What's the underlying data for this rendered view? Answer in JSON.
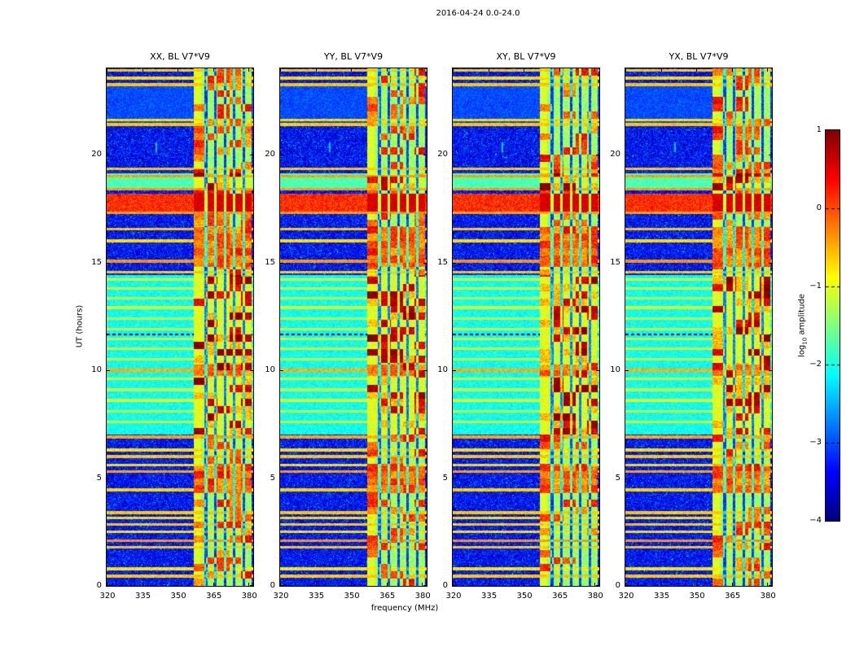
{
  "chart_data": {
    "type": "heatmap",
    "title": "2016-04-24 0.0-24.0",
    "xlabel": "frequency (MHz)",
    "ylabel": "UT (hours)",
    "zlabel": "log10 amplitude",
    "colormap": "jet",
    "panels": [
      "XX, BL V7*V9",
      "YY, BL V7*V9",
      "XY, BL V7*V9",
      "YX, BL V7*V9"
    ],
    "x_range_mhz": [
      320,
      382
    ],
    "x_ticks_mhz": [
      320,
      335,
      350,
      365,
      380
    ],
    "y_range_hours": [
      0,
      24
    ],
    "y_ticks_hours": [
      0,
      5,
      10,
      15,
      20
    ],
    "z_range_log10_amplitude": [
      -4,
      1
    ],
    "z_ticks": [
      1,
      0,
      -1,
      -2,
      -3,
      -4
    ],
    "features": {
      "background_level": -3.35,
      "rfi_band_mhz": [
        357,
        381.3
      ],
      "rfi_band_level": -1.35,
      "rfi_solid_edge_mhz": [
        357,
        359.8
      ],
      "rfi_gap_stripes_mhz": [
        362,
        366,
        370,
        374,
        378
      ],
      "elevated_bands_hours": [
        [
          7.0,
          14.4,
          -2.05
        ],
        [
          18.35,
          19.15,
          -1.75
        ],
        [
          21.35,
          23.25,
          -3.0
        ]
      ],
      "strong_event_hours": [
        17.35,
        18.2,
        0.15
      ],
      "strong_rfi_block_hours": [
        [
          4.3,
          5.55
        ],
        [
          9.75,
          10.25
        ],
        [
          14.8,
          16.65
        ]
      ],
      "horizontal_lines_hours_level": [
        [
          0.45,
          -0.6
        ],
        [
          0.8,
          -0.75
        ],
        [
          1.8,
          -0.6
        ],
        [
          2.1,
          -0.35
        ],
        [
          2.5,
          -0.7
        ],
        [
          2.85,
          -0.6
        ],
        [
          3.15,
          -0.7
        ],
        [
          3.4,
          -0.6
        ],
        [
          4.45,
          -0.65
        ],
        [
          5.3,
          -0.4
        ],
        [
          5.6,
          -0.7
        ],
        [
          6.0,
          -0.6
        ],
        [
          6.3,
          -0.7
        ],
        [
          6.9,
          -0.45
        ],
        [
          7.6,
          -1.15
        ],
        [
          8.1,
          -1.2
        ],
        [
          8.6,
          -1.1
        ],
        [
          9.1,
          -1.2
        ],
        [
          9.6,
          -1.15
        ],
        [
          10.0,
          -0.5
        ],
        [
          10.5,
          -1.2
        ],
        [
          11.0,
          -1.1
        ],
        [
          11.45,
          -1.2
        ],
        [
          11.9,
          -1.15
        ],
        [
          12.4,
          -1.2
        ],
        [
          12.9,
          -1.1
        ],
        [
          13.35,
          -1.2
        ],
        [
          13.8,
          -1.15
        ],
        [
          14.2,
          -1.1
        ],
        [
          14.55,
          -0.6
        ],
        [
          15.05,
          -0.35
        ],
        [
          16.0,
          -0.7
        ],
        [
          16.55,
          -0.6
        ],
        [
          17.3,
          -0.4
        ],
        [
          18.4,
          -0.4
        ],
        [
          19.0,
          -0.4
        ],
        [
          19.35,
          -0.6
        ],
        [
          21.4,
          -0.6
        ],
        [
          21.6,
          -0.7
        ],
        [
          23.25,
          -0.6
        ],
        [
          23.55,
          -0.7
        ],
        [
          23.9,
          -0.6
        ]
      ],
      "dark_dashed_line_hours": 11.65,
      "narrow_streak": {
        "mhz": 341,
        "hours": [
          20.1,
          20.55
        ],
        "level": -2.4
      }
    }
  },
  "axes": {
    "x_tick_labels": [
      "320",
      "335",
      "350",
      "365",
      "380"
    ],
    "y_tick_labels": [
      "0",
      "5",
      "10",
      "15",
      "20"
    ]
  },
  "colorbar": {
    "tick_labels": [
      "1",
      "0",
      "−1",
      "−2",
      "−3",
      "−4"
    ],
    "label_prefix": "log",
    "label_sub": "10",
    "label_rest": "amplitude"
  }
}
